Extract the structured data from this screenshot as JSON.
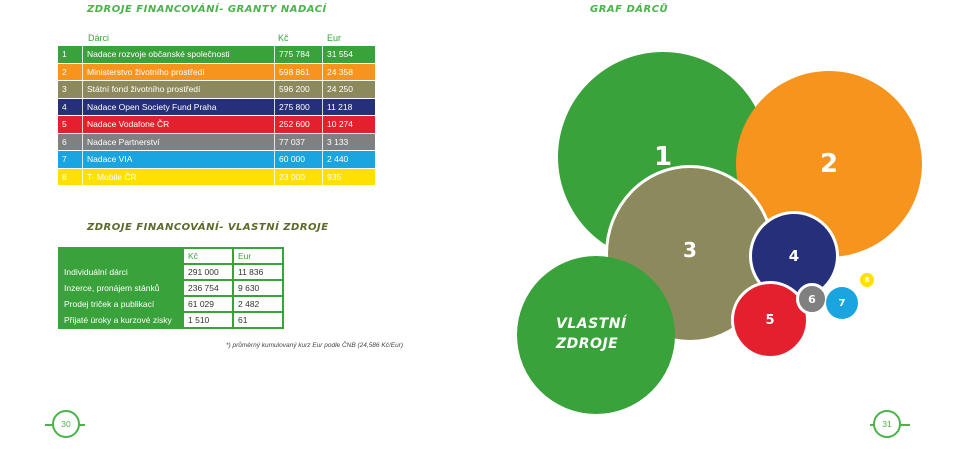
{
  "titles": {
    "left": "ZDROJE FINANCOVÁNÍ- GRANTY NADACÍ",
    "right": "GRAF DÁRCŮ",
    "own": "ZDROJE FINANCOVÁNÍ- VLASTNÍ ZDROJE"
  },
  "donors": {
    "headers": {
      "name": "Dárci",
      "kc": "Kč",
      "eur": "Eur"
    },
    "rows": [
      {
        "n": "1",
        "name": "Nadace rozvoje občanské společnosti",
        "kc": "775 784",
        "eur": "31 554",
        "color": "#3aa23a"
      },
      {
        "n": "2",
        "name": "Ministerstvo životního prostředí",
        "kc": "598 861",
        "eur": "24 358",
        "color": "#f7941d"
      },
      {
        "n": "3",
        "name": "Státní fond životního prostředí",
        "kc": "596 200",
        "eur": "24 250",
        "color": "#8c8a5c"
      },
      {
        "n": "4",
        "name": "Nadace Open Society Fund Praha",
        "kc": "275 800",
        "eur": "11 218",
        "color": "#262f7a"
      },
      {
        "n": "5",
        "name": "Nadace Vodafone ČR",
        "kc": "252 600",
        "eur": "10 274",
        "color": "#e5202e"
      },
      {
        "n": "6",
        "name": "Nadace Partnerství",
        "kc": "77 037",
        "eur": "3 133",
        "color": "#808080"
      },
      {
        "n": "7",
        "name": "Nadace VIA",
        "kc": "60 000",
        "eur": "2 440",
        "color": "#1aa4e0"
      },
      {
        "n": "8",
        "name": "T- Mobile ČR",
        "kc": "23 000",
        "eur": "935",
        "color": "#ffe000"
      }
    ]
  },
  "own_sources": {
    "headers": {
      "kc": "Kč",
      "eur": "Eur"
    },
    "rows": [
      {
        "label": "Individuální dárci",
        "kc": "291 000",
        "eur": "11 836"
      },
      {
        "label": "Inzerce, pronájem stánků",
        "kc": "236 754",
        "eur": "9 630"
      },
      {
        "label": "Prodej triček a publikací",
        "kc": "61 029",
        "eur": "2 482"
      },
      {
        "label": "Přijaté úroky a kurzové zisky",
        "kc": "1 510",
        "eur": "61"
      }
    ],
    "note": "*) průměrný kumulovaný kurz Eur podle ČNB (24,586 Kč/Eur)"
  },
  "bubbles": {
    "labels": [
      "1",
      "2",
      "3",
      "4",
      "5",
      "6",
      "7",
      "8"
    ],
    "own_label": "VLASTNÍ ZDROJE",
    "colors": {
      "c1": "#3aa23a",
      "c2": "#f7941d",
      "c3": "#8c8a5c",
      "c4": "#262f7a",
      "c5": "#e5202e",
      "c6": "#808080",
      "c7": "#1aa4e0",
      "c8": "#ffe000",
      "own": "#3aa23a"
    }
  },
  "pages": {
    "left": "30",
    "right": "31"
  }
}
